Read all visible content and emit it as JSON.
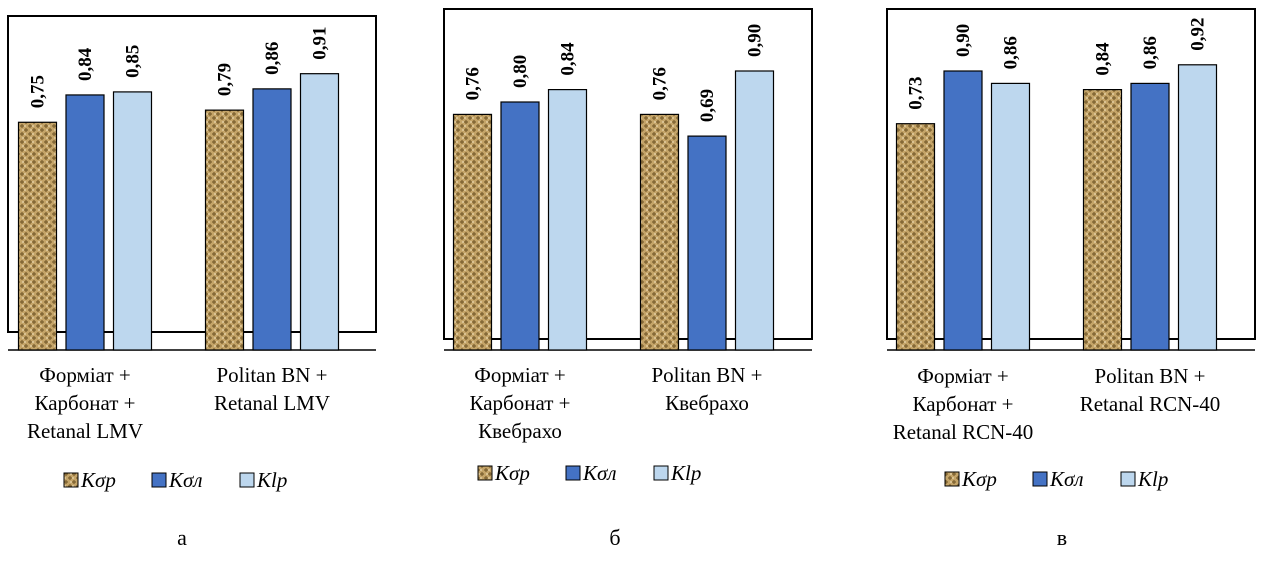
{
  "colors": {
    "Kσp": "#c4a468",
    "Kσл": "#4472c4",
    "Klp": "#bdd7ee",
    "border": "#000000"
  },
  "chart_data": [
    {
      "type": "bar",
      "panel_label": "а",
      "categories": [
        [
          "Форміат +",
          "Карбонат  +",
          "Retanal LMV"
        ],
        [
          "Politan BN +",
          "Retanal LMV"
        ]
      ],
      "series": [
        {
          "name": "Kσp",
          "values": [
            0.75,
            0.79
          ],
          "value_labels": [
            "0,75",
            "0,79"
          ]
        },
        {
          "name": "Kσл",
          "values": [
            0.84,
            0.86
          ],
          "value_labels": [
            "0,84",
            "0,86"
          ]
        },
        {
          "name": "Klp",
          "values": [
            0.85,
            0.91
          ],
          "value_labels": [
            "0,85",
            "0,91"
          ]
        }
      ],
      "legend": {
        "position": "bottom",
        "items": [
          "Kσp",
          "Kσл",
          "Klp"
        ]
      },
      "ylim": [
        0,
        1.1
      ]
    },
    {
      "type": "bar",
      "panel_label": "б",
      "categories": [
        [
          "Форміат +",
          "Карбонат +",
          "Квебрахо"
        ],
        [
          "Politan BN +",
          "Квебрахо"
        ]
      ],
      "series": [
        {
          "name": "Kσp",
          "values": [
            0.76,
            0.76
          ],
          "value_labels": [
            "0,76",
            "0,76"
          ]
        },
        {
          "name": "Kσл",
          "values": [
            0.8,
            0.69
          ],
          "value_labels": [
            "0,80",
            "0,69"
          ]
        },
        {
          "name": "Klp",
          "values": [
            0.84,
            0.9
          ],
          "value_labels": [
            "0,84",
            "0,90"
          ]
        }
      ],
      "legend": {
        "position": "bottom",
        "items": [
          "Kσp",
          "Kσл",
          "Klp"
        ]
      },
      "ylim": [
        0,
        1.1
      ]
    },
    {
      "type": "bar",
      "panel_label": "в",
      "categories": [
        [
          "Форміат +",
          "Карбонат +",
          "Retanal RCN-40"
        ],
        [
          "Politan BN +",
          "Retanal RCN-40"
        ]
      ],
      "series": [
        {
          "name": "Kσp",
          "values": [
            0.73,
            0.84
          ],
          "value_labels": [
            "0,73",
            "0,84"
          ]
        },
        {
          "name": "Kσл",
          "values": [
            0.9,
            0.86
          ],
          "value_labels": [
            "0,90",
            "0,86"
          ]
        },
        {
          "name": "Klp",
          "values": [
            0.86,
            0.92
          ],
          "value_labels": [
            "0,86",
            "0,92"
          ]
        }
      ],
      "legend": {
        "position": "bottom",
        "items": [
          "Kσp",
          "Kσл",
          "Klp"
        ]
      },
      "ylim": [
        0,
        1.1
      ]
    }
  ]
}
